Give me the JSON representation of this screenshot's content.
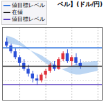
{
  "chart_data": {
    "type": "candlestick",
    "title": "ベル】(ドル/円)",
    "tick_labels": false,
    "grid": true,
    "legend": "top-left",
    "xlim": [
      0,
      23
    ],
    "xticks": [
      4,
      10,
      16,
      22
    ],
    "ylim": [
      20,
      95
    ],
    "yticks": [
      40,
      60,
      80
    ],
    "candles": {
      "x": [
        1,
        2,
        3,
        4,
        5,
        6,
        7,
        8,
        9,
        10,
        11,
        12,
        13,
        14,
        15,
        16,
        17,
        18
      ],
      "open": [
        80,
        76,
        70,
        64,
        58,
        52,
        47,
        42,
        40,
        46,
        50,
        56,
        52,
        62,
        68,
        60,
        64,
        58
      ],
      "high": [
        84,
        78,
        73,
        66,
        62,
        56,
        50,
        46,
        48,
        52,
        58,
        60,
        64,
        70,
        72,
        66,
        68,
        62
      ],
      "low": [
        74,
        68,
        62,
        55,
        50,
        44,
        38,
        35,
        38,
        42,
        48,
        50,
        51,
        60,
        58,
        55,
        56,
        52
      ],
      "close": [
        76,
        70,
        64,
        58,
        52,
        47,
        42,
        40,
        46,
        50,
        56,
        52,
        62,
        68,
        60,
        64,
        58,
        55
      ],
      "colors": [
        "#2a4fd8",
        "#2a4fd8",
        "#2a4fd8",
        "#2a4fd8",
        "#2a4fd8",
        "#2a4fd8",
        "#2a4fd8",
        "#2a4fd8",
        "#e0303a",
        "#e0303a",
        "#e0303a",
        "#2a4fd8",
        "#e0303a",
        "#e0303a",
        "#2a4fd8",
        "#e0303a",
        "#2a4fd8",
        "#2a4fd8"
      ]
    },
    "cloud": {
      "x": [
        1,
        2,
        3,
        4,
        5,
        6,
        7,
        8,
        9,
        10,
        11,
        12,
        13,
        14,
        15,
        16,
        17,
        18,
        19,
        20,
        21,
        22
      ],
      "span_a": [
        86,
        85,
        83,
        80,
        77,
        73,
        69,
        65,
        61,
        58,
        55,
        53,
        52,
        52,
        53,
        55,
        57,
        58,
        59,
        59,
        60,
        60
      ],
      "span_b": [
        78,
        78,
        77,
        76,
        74,
        72,
        70,
        68,
        66,
        63,
        60,
        57,
        54,
        51,
        49,
        47,
        46,
        46,
        47,
        48,
        49,
        50
      ],
      "color": "#9fc4ee"
    },
    "series": [
      {
        "name": "値目標レベル",
        "color": "#3a7be0",
        "type": "rule",
        "values": [
          74
        ]
      },
      {
        "name": "在値",
        "color": "#222222",
        "type": "rule",
        "values": [
          55
        ]
      },
      {
        "name": "値目標レベル",
        "color": "#5a3fc0",
        "type": "rule",
        "values": [
          36
        ]
      }
    ]
  }
}
